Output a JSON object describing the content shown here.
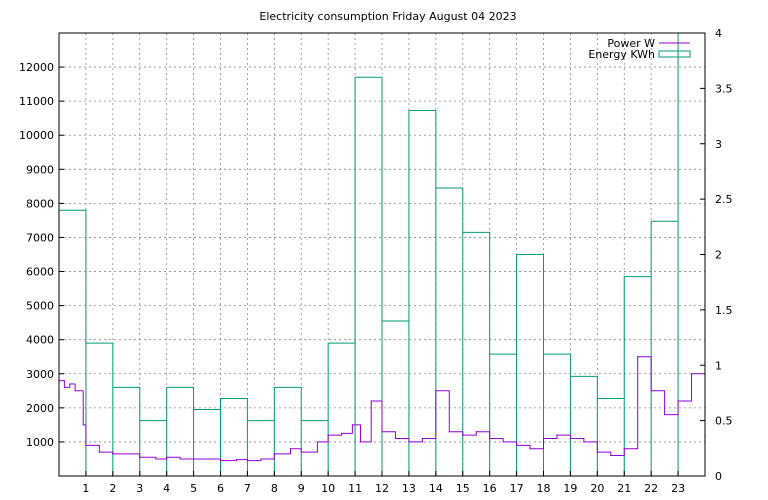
{
  "chart_data": {
    "type": "line",
    "title": "Electricity consumption Friday August 04 2023",
    "xlabel": "",
    "ylabel": "",
    "y2label": "",
    "xlim": [
      0,
      24
    ],
    "ylim": [
      0,
      13000
    ],
    "y2lim": [
      0,
      4
    ],
    "x_ticks": [
      1,
      2,
      3,
      4,
      5,
      6,
      7,
      8,
      9,
      10,
      11,
      12,
      13,
      14,
      15,
      16,
      17,
      18,
      19,
      20,
      21,
      22,
      23
    ],
    "y_ticks": [
      1000,
      2000,
      3000,
      4000,
      5000,
      6000,
      7000,
      8000,
      9000,
      10000,
      11000,
      12000
    ],
    "y2_ticks": [
      "0",
      "0.5",
      "1",
      "1.5",
      "2",
      "2.5",
      "3",
      "3.5",
      "4"
    ],
    "grid": true,
    "legend_position": "top-right",
    "series": [
      {
        "name": "Power W",
        "axis": "left",
        "style": "steps",
        "color": "#9400d3",
        "x": [
          0.0,
          0.2,
          0.4,
          0.6,
          0.9,
          1.0,
          1.5,
          2.0,
          3.0,
          3.6,
          4.0,
          4.5,
          5.0,
          6.0,
          6.6,
          7.0,
          7.5,
          8.0,
          8.6,
          9.0,
          9.6,
          10.0,
          10.5,
          10.9,
          11.2,
          11.6,
          12.0,
          12.5,
          13.0,
          13.5,
          14.0,
          14.5,
          15.0,
          15.5,
          16.0,
          16.5,
          17.0,
          17.5,
          18.0,
          18.5,
          19.0,
          19.5,
          20.0,
          20.5,
          21.0,
          21.5,
          22.0,
          22.5,
          23.0,
          23.5,
          24.0
        ],
        "y": [
          2800,
          2600,
          2700,
          2500,
          1500,
          900,
          700,
          650,
          550,
          500,
          550,
          500,
          500,
          450,
          480,
          450,
          500,
          650,
          800,
          700,
          1000,
          1200,
          1250,
          1500,
          1000,
          2200,
          1300,
          1100,
          1000,
          1100,
          2500,
          1300,
          1200,
          1300,
          1100,
          1000,
          900,
          800,
          1100,
          1200,
          1100,
          1000,
          700,
          600,
          800,
          3500,
          2500,
          1800,
          2200,
          3000,
          1200
        ]
      },
      {
        "name": "Energy KWh",
        "axis": "right",
        "style": "histeps",
        "color": "#009e73",
        "x": [
          0,
          1,
          2,
          3,
          4,
          5,
          6,
          7,
          8,
          9,
          10,
          11,
          12,
          13,
          14,
          15,
          16,
          17,
          18,
          19,
          20,
          21,
          22,
          23
        ],
        "y": [
          2.4,
          1.2,
          0.8,
          0.5,
          0.8,
          0.6,
          0.7,
          0.5,
          0.8,
          0.5,
          1.2,
          3.6,
          1.4,
          3.3,
          2.6,
          2.2,
          1.1,
          2.0,
          1.1,
          0.9,
          0.7,
          1.8,
          2.3,
          4.0
        ]
      }
    ]
  }
}
